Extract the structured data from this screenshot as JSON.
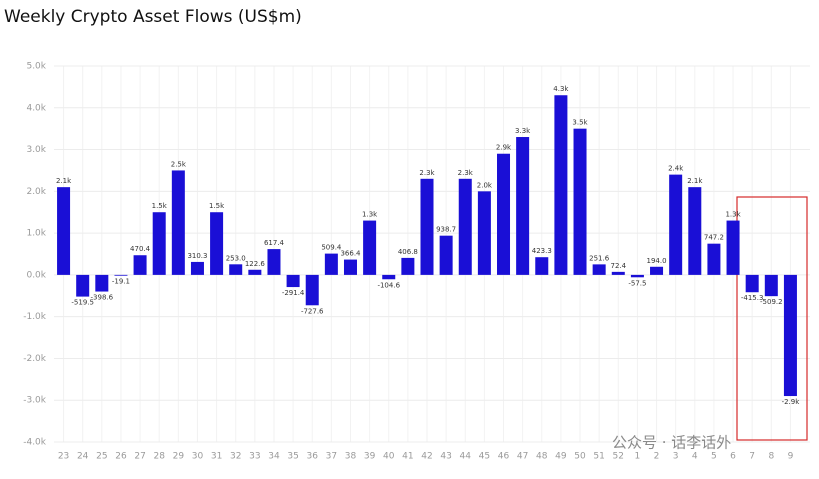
{
  "chart_data": {
    "type": "bar",
    "title": "Weekly Crypto Asset Flows (US$m)",
    "categories": [
      "23",
      "24",
      "25",
      "26",
      "27",
      "28",
      "29",
      "30",
      "31",
      "32",
      "33",
      "34",
      "35",
      "36",
      "37",
      "38",
      "39",
      "40",
      "41",
      "42",
      "43",
      "44",
      "45",
      "46",
      "47",
      "48",
      "49",
      "50",
      "51",
      "52",
      "1",
      "2",
      "3",
      "4",
      "5",
      "6",
      "7",
      "8",
      "9"
    ],
    "values": [
      2100,
      -519.5,
      -398.6,
      -19.1,
      470.4,
      1500,
      2500,
      310.3,
      1500,
      253.0,
      122.6,
      617.4,
      -291.4,
      -727.6,
      509.4,
      366.4,
      1300,
      -104.6,
      406.8,
      2300,
      938.7,
      2300,
      2000,
      2900,
      3300,
      423.3,
      4300,
      3500,
      251.6,
      72.4,
      -57.5,
      194.0,
      2400,
      2100,
      747.2,
      1300,
      -415.3,
      -509.2,
      -2900
    ],
    "value_labels": [
      "2.1k",
      "-519.5",
      "-398.6",
      "-19.1",
      "470.4",
      "1.5k",
      "2.5k",
      "310.3",
      "1.5k",
      "253.0",
      "122.6",
      "617.4",
      "-291.4",
      "-727.6",
      "509.4",
      "366.4",
      "1.3k",
      "-104.6",
      "406.8",
      "2.3k",
      "938.7",
      "2.3k",
      "2.0k",
      "2.9k",
      "3.3k",
      "423.3",
      "4.3k",
      "3.5k",
      "251.6",
      "72.4",
      "-57.5",
      "194.0",
      "2.4k",
      "2.1k",
      "747.2",
      "1.3k",
      "-415.3",
      "-509.2",
      "-2.9k"
    ],
    "color": "#1a0fd6",
    "ylim": [
      -4000,
      5000
    ],
    "yticks": [
      {
        "value": -4000,
        "label": "-4.0k"
      },
      {
        "value": -3000,
        "label": "-3.0k"
      },
      {
        "value": -2000,
        "label": "-2.0k"
      },
      {
        "value": -1000,
        "label": "-1.0k"
      },
      {
        "value": 0,
        "label": "0.0k"
      },
      {
        "value": 1000,
        "label": "1.0k"
      },
      {
        "value": 2000,
        "label": "2.0k"
      },
      {
        "value": 3000,
        "label": "3.0k"
      },
      {
        "value": 4000,
        "label": "4.0k"
      },
      {
        "value": 5000,
        "label": "5.0k"
      }
    ],
    "grid": true,
    "watermark": "公众号 · 话李话外"
  }
}
